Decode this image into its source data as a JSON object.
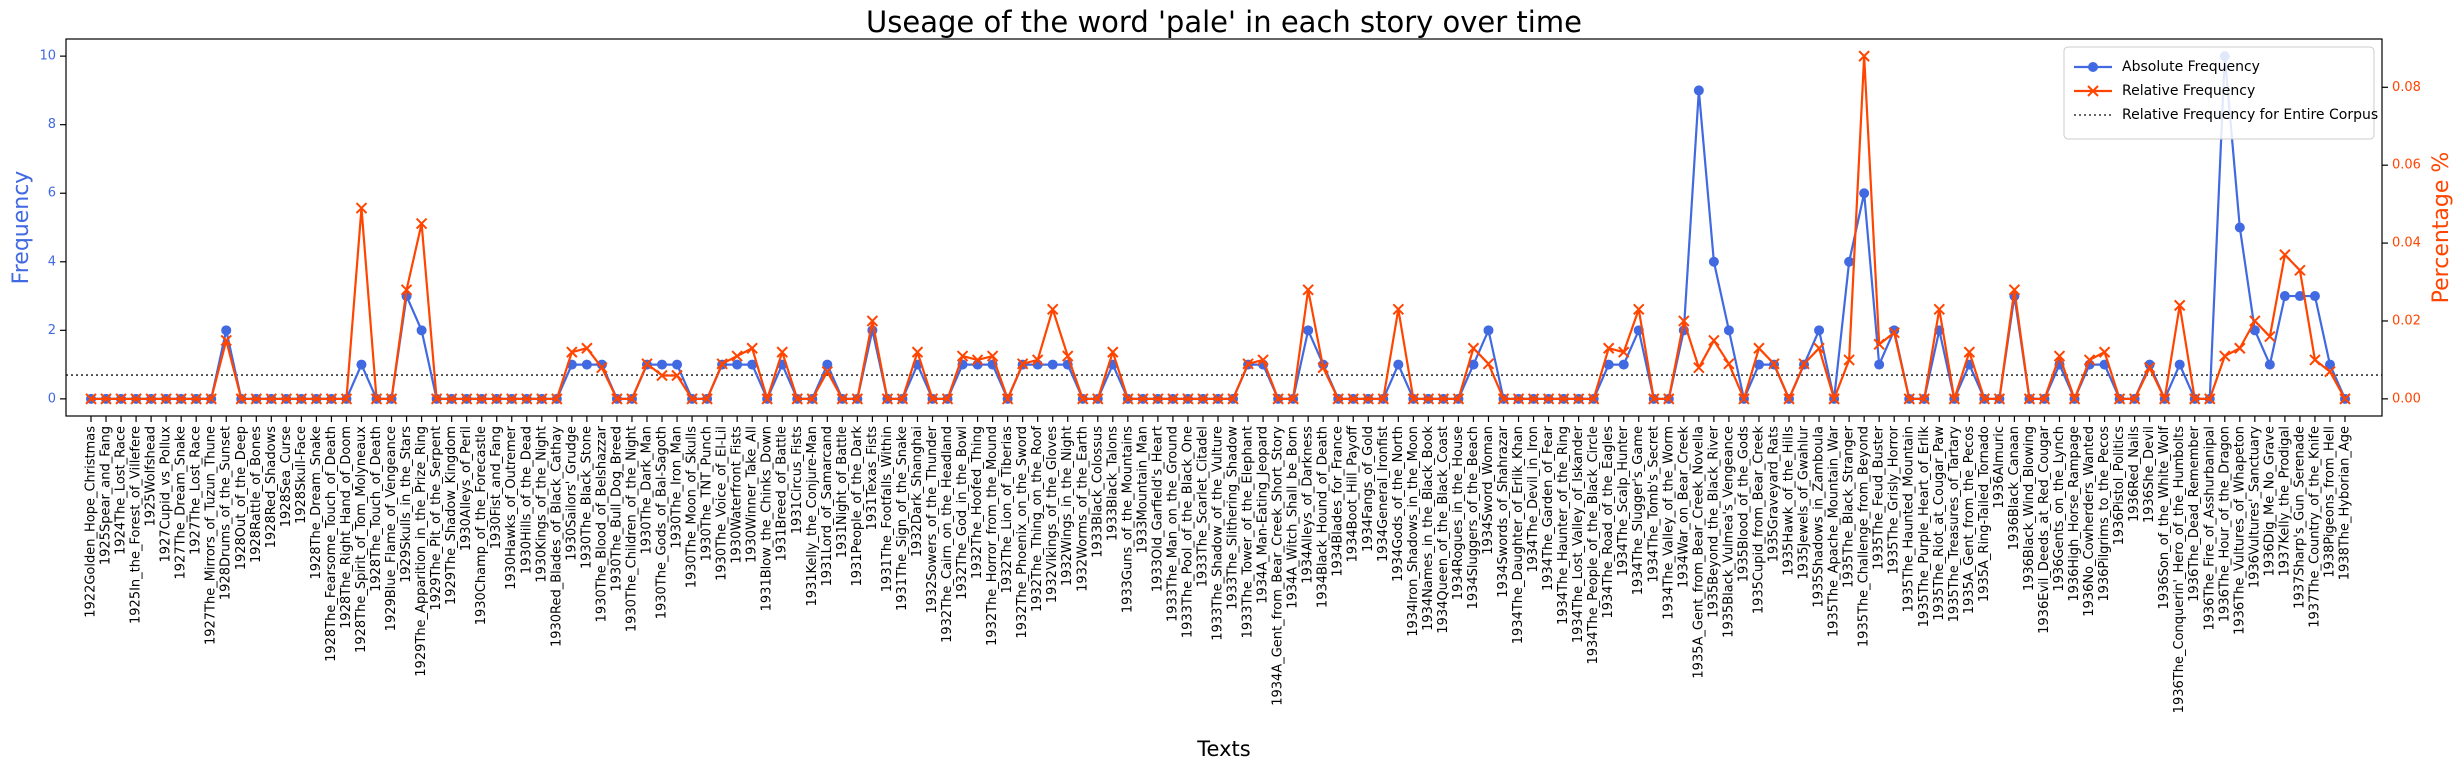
{
  "chart_data": {
    "type": "line",
    "title": "Useage of the word 'pale' in each story over time",
    "xlabel": "Texts",
    "ylabel": "Frequency",
    "y2label": "Percentage %",
    "legend": "upper right",
    "ylim": [
      -0.5,
      10.5
    ],
    "yticks": [
      0,
      2,
      4,
      6,
      8,
      10
    ],
    "y2lim": [
      -0.0044,
      0.0924
    ],
    "y2ticks": [
      {
        "value": 0,
        "label": "0.00"
      },
      {
        "value": 0.02,
        "label": "0.02"
      },
      {
        "value": 0.04,
        "label": "0.04"
      },
      {
        "value": 0.06,
        "label": "0.06"
      },
      {
        "value": 0.08,
        "label": "0.08"
      }
    ],
    "categories": [
      "1922Golden_Hope_Christmas",
      "1925Spear_and_Fang",
      "1924The_Lost_Race",
      "1925In_the_Forest_of_Villefere",
      "1925Wolfshead",
      "1927Cupid_vs_Pollux",
      "1927The_Dream_Snake",
      "1927The_Lost_Race",
      "1927The_Mirrors_of_Tuzun_Thune",
      "1928Drums_of_the_Sunset",
      "1928Out_of_the_Deep",
      "1928Rattle_of_Bones",
      "1928Red_Shadows",
      "1928Sea_Curse",
      "1928Skull-Face",
      "1928The_Dream_Snake",
      "1928The_Fearsome_Touch_of_Death",
      "1928The_Right_Hand_of_Doom",
      "1928The_Spirit_of_Tom_Molyneaux",
      "1928The_Touch_of_Death",
      "1929Blue_Flame_of_Vengeance",
      "1929Skulls_in_the_Stars",
      "1929The_Apparition_in_the_Prize_Ring",
      "1929The_Pit_of_the_Serpent",
      "1929The_Shadow_Kingdom",
      "1930Alleys_of_Peril",
      "1930Champ_of_the_Forecastle",
      "1930Fist_and_Fang",
      "1930Hawks_of_Outremer",
      "1930Hills_of_the_Dead",
      "1930Kings_of_the_Night",
      "1930Red_Blades_of_Black_Cathay",
      "1930Sailors'_Grudge",
      "1930The_Black_Stone",
      "1930The_Blood_of_Belshazzar",
      "1930The_Bull_Dog_Breed",
      "1930The_Children_of_the_Night",
      "1930The_Dark_Man",
      "1930The_Gods_of_Bal-Sagoth",
      "1930The_Iron_Man",
      "1930The_Moon_of_Skulls",
      "1930The_TNT_Punch",
      "1930The_Voice_of_El-Lil",
      "1930Waterfront_Fists",
      "1930Winner_Take_All",
      "1931Blow_the_Chinks_Down",
      "1931Breed_of_Battle",
      "1931Circus_Fists",
      "1931Kelly_the_Conjure-Man",
      "1931Lord_of_Samarcand",
      "1931Night_of_Battle",
      "1931People_of_the_Dark",
      "1931Texas_Fists",
      "1931The_Footfalls_Within",
      "1931The_Sign_of_the_Snake",
      "1932Dark_Shanghai",
      "1932Sowers_of_the_Thunder",
      "1932The_Cairn_on_the_Headland",
      "1932The_God_in_the_Bowl",
      "1932The_Hoofed_Thing",
      "1932The_Horror_from_the_Mound",
      "1932The_Lion_of_Tiberias",
      "1932The_Phoenix_on_the_Sword",
      "1932The_Thing_on_the_Roof",
      "1932Vikings_of_the_Gloves",
      "1932Wings_in_the_Night",
      "1932Worms_of_the_Earth",
      "1933Black_Colossus",
      "1933Black_Talons",
      "1933Guns_of_the_Mountains",
      "1933Mountain_Man",
      "1933Old_Garfield's_Heart",
      "1933The_Man_on_the_Ground",
      "1933The_Pool_of_the_Black_One",
      "1933The_Scarlet_Citadel",
      "1933The_Shadow_of_the_Vulture",
      "1933The_Slithering_Shadow",
      "1933The_Tower_of_the_Elephant",
      "1934A_Man-Eating_Jeopard",
      "1934A_Gent_from_Bear_Creek_Short_Story",
      "1934A_Witch_Shall_be_Born",
      "1934Alleys_of_Darkness",
      "1934Black_Hound_of_Death",
      "1934Blades_for_France",
      "1934Boot_Hill_Payoff",
      "1934Fangs_of_Gold",
      "1934General_Ironfist",
      "1934Gods_of_the_North",
      "1934Iron_Shadows_in_the_Moon",
      "1934Names_in_the_Black_Book",
      "1934Queen_of_the_Black_Coast",
      "1934Rogues_in_the_House",
      "1934Sluggers_of_the_Beach",
      "1934Sword_Woman",
      "1934Swords_of_Shahrazar",
      "1934The_Daughter_of_Erlik_Khan",
      "1934The_Devil_in_Iron",
      "1934The_Garden_of_Fear",
      "1934The_Haunter_of_the_Ring",
      "1934The_Lost_Valley_of_Iskander",
      "1934The_People_of_the_Black_Circle",
      "1934The_Road_of_the_Eagles",
      "1934The_Scalp_Hunter",
      "1934The_Slugger's_Game",
      "1934The_Tomb's_Secret",
      "1934The_Valley_of_the_Worm",
      "1934War_on_Bear_Creek",
      "1935A_Gent_from_Bear_Creek_Novella",
      "1935Beyond_the_Black_River",
      "1935Black_Vulmea's_Vengeance",
      "1935Blood_of_the_Gods",
      "1935Cupid_from_Bear_Creek",
      "1935Graveyard_Rats",
      "1935Hawk_of_the_Hills",
      "1935Jewels_of_Gwahlur",
      "1935Shadows_in_Zamboula",
      "1935The_Apache_Mountain_War",
      "1935The_Black_Stranger",
      "1935The_Challenge_from_Beyond",
      "1935The_Feud_Buster",
      "1935The_Grisly_Horror",
      "1935The_Haunted_Mountain",
      "1935The_Purple_Heart_of_Erlik",
      "1935The_Riot_at_Cougar_Paw",
      "1935The_Treasures_of_Tartary",
      "1935A_Gent_from_the_Pecos",
      "1935A_Ring-Tailed_Tornado",
      "1936Almuric",
      "1936Black_Canaan",
      "1936Black_Wind_Blowing",
      "1936Evil_Deeds_at_Red_Cougar",
      "1936Gents_on_the_Lynch",
      "1936High_Horse_Rampage",
      "1936No_Cowherders_Wanted",
      "1936Pilgrims_to_the_Pecos",
      "1936Pistol_Politics",
      "1936Red_Nails",
      "1936She_Devil",
      "1936Son_of_the_White_Wolf",
      "1936The_Conquerin'_Hero_of_the_Humbolts",
      "1936The_Dead_Remember",
      "1936The_Fire_of_Asshurbanipal",
      "1936The_Hour_of_the_Dragon",
      "1936The_Vultures_of_Whapeton",
      "1936Vultures'_Sanctuary",
      "1936Dig_Me_No_Grave",
      "1937Kelly_the_Prodigal",
      "1937Sharp's_Gun_Serenade",
      "1937The_Country_of_the_Knife",
      "1938Pigeons_from_Hell",
      "1938The_Hyborian_Age"
    ],
    "series": [
      {
        "name": "Absolute Frequency",
        "color": "#4169e1",
        "marker": "circle",
        "values": [
          0,
          0,
          0,
          0,
          0,
          0,
          0,
          0,
          0,
          2,
          0,
          0,
          0,
          0,
          0,
          0,
          0,
          0,
          1,
          0,
          0,
          3,
          2,
          0,
          0,
          0,
          0,
          0,
          0,
          0,
          0,
          0,
          1,
          1,
          1,
          0,
          0,
          1,
          1,
          1,
          0,
          0,
          1,
          1,
          1,
          0,
          1,
          0,
          0,
          1,
          0,
          0,
          2,
          0,
          0,
          1,
          0,
          0,
          1,
          1,
          1,
          0,
          1,
          1,
          1,
          1,
          0,
          0,
          1,
          0,
          0,
          0,
          0,
          0,
          0,
          0,
          0,
          1,
          1,
          0,
          0,
          2,
          1,
          0,
          0,
          0,
          0,
          1,
          0,
          0,
          0,
          0,
          1,
          2,
          0,
          0,
          0,
          0,
          0,
          0,
          0,
          1,
          1,
          2,
          0,
          0,
          2,
          9,
          4,
          2,
          0,
          1,
          1,
          0,
          1,
          2,
          0,
          4,
          6,
          1,
          2,
          0,
          0,
          2,
          0,
          1,
          0,
          0,
          3,
          0,
          0,
          1,
          0,
          1,
          1,
          0,
          0,
          1,
          0,
          1,
          0,
          0,
          10,
          5,
          2,
          1,
          3,
          3,
          3,
          1,
          0
        ]
      },
      {
        "name": "Relative Frequency",
        "color": "#ff4500",
        "marker": "x",
        "axis": "y2",
        "values": [
          0,
          0,
          0,
          0,
          0,
          0,
          0,
          0,
          0,
          0.015,
          0,
          0,
          0,
          0,
          0,
          0,
          0,
          0,
          0.049,
          0,
          0,
          0.028,
          0.045,
          0,
          0,
          0,
          0,
          0,
          0,
          0,
          0,
          0,
          0.012,
          0.013,
          0.008,
          0,
          0,
          0.009,
          0.006,
          0.006,
          0,
          0,
          0.009,
          0.011,
          0.013,
          0,
          0.012,
          0,
          0,
          0.007,
          0,
          0,
          0.02,
          0,
          0,
          0.012,
          0,
          0,
          0.011,
          0.01,
          0.011,
          0,
          0.009,
          0.01,
          0.023,
          0.011,
          0,
          0,
          0.012,
          0,
          0,
          0,
          0,
          0,
          0,
          0,
          0,
          0.009,
          0.01,
          0,
          0,
          0.028,
          0.008,
          0,
          0,
          0,
          0,
          0.023,
          0,
          0,
          0,
          0,
          0.013,
          0.009,
          0,
          0,
          0,
          0,
          0,
          0,
          0,
          0.013,
          0.012,
          0.023,
          0,
          0,
          0.02,
          0.008,
          0.015,
          0.009,
          0,
          0.013,
          0.009,
          0,
          0.009,
          0.013,
          0,
          0.01,
          0.088,
          0.014,
          0.017,
          0,
          0,
          0.023,
          0,
          0.012,
          0,
          0,
          0.028,
          0,
          0,
          0.011,
          0,
          0.01,
          0.012,
          0,
          0,
          0.008,
          0,
          0.024,
          0,
          0,
          0.011,
          0.013,
          0.02,
          0.016,
          0.037,
          0.033,
          0.01,
          0.007,
          0
        ]
      }
    ],
    "reference_lines": [
      {
        "name": "Relative Frequency for Entire Corpus",
        "value": 0.0061,
        "axis": "y2",
        "color": "#333333",
        "style": "dotted"
      }
    ]
  }
}
